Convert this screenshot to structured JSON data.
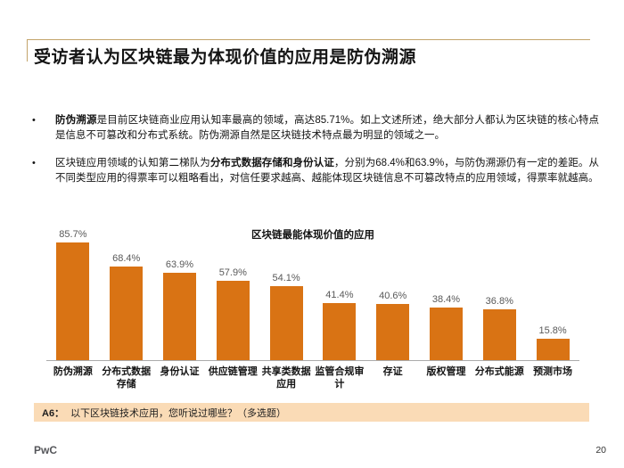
{
  "slide": {
    "title": "受访者认为区块链最为体现价值的应用是防伪溯源",
    "bullets": [
      [
        {
          "t": "防伪溯源",
          "b": true
        },
        {
          "t": "是目前区块链商业应用认知率最高的领域，高达85.71%。如上文述所述，绝大部分人都认为区块链的核心特点是信息不可篡改和分布式系统。防伪溯源自然是区块链技术特点最为明显的领域之一。",
          "b": false
        }
      ],
      [
        {
          "t": "区块链应用领域的认知第二梯队为",
          "b": false
        },
        {
          "t": "分布式数据存储和身份认证",
          "b": true
        },
        {
          "t": "，分别为68.4%和63.9%，与防伪溯源仍有一定的差距。从不同类型应用的得票率可以粗略看出，对信任要求越高、越能体现区块链信息不可篡改特点的应用领域，得票率就越高。",
          "b": false
        }
      ]
    ],
    "footer_note": {
      "prefix": "A6：",
      "text": "以下区块链技术应用，您听说过哪些？（多选题）"
    },
    "logo": "PwC",
    "page_number": "20"
  },
  "chart_data": {
    "type": "bar",
    "title": "区块链最能体现价值的应用",
    "categories": [
      "防伪溯源",
      "分布式数据存储",
      "身份认证",
      "供应链管理",
      "共享类数据应用",
      "监管合规审计",
      "存证",
      "版权管理",
      "分布式能源",
      "预测市场"
    ],
    "categories_display": [
      [
        "防伪溯源"
      ],
      [
        "分布式数据",
        "存储"
      ],
      [
        "身份认证"
      ],
      [
        "供应链管理"
      ],
      [
        "共享类数据",
        "应用"
      ],
      [
        "监管合规审",
        "计"
      ],
      [
        "存证"
      ],
      [
        "版权管理"
      ],
      [
        "分布式能源"
      ],
      [
        "预测市场"
      ]
    ],
    "values": [
      85.7,
      68.4,
      63.9,
      57.9,
      54.1,
      41.4,
      40.6,
      38.4,
      36.8,
      15.8
    ],
    "value_labels": [
      "85.7%",
      "68.4%",
      "63.9%",
      "57.9%",
      "54.1%",
      "41.4%",
      "40.6%",
      "38.4%",
      "36.8%",
      "15.8%"
    ],
    "xlabel": "",
    "ylabel": "",
    "ylim": [
      0,
      98
    ],
    "grid": false,
    "legend": false,
    "bar_color": "#D97314",
    "value_label_color": "#595959",
    "axis_color": "#ABABAB"
  },
  "colors": {
    "accent_orange": "#D97314",
    "footnote_bg": "#FADBB6",
    "rule_tan": "#C3A46A",
    "text": "#141414",
    "logo_gray": "#55565A"
  }
}
